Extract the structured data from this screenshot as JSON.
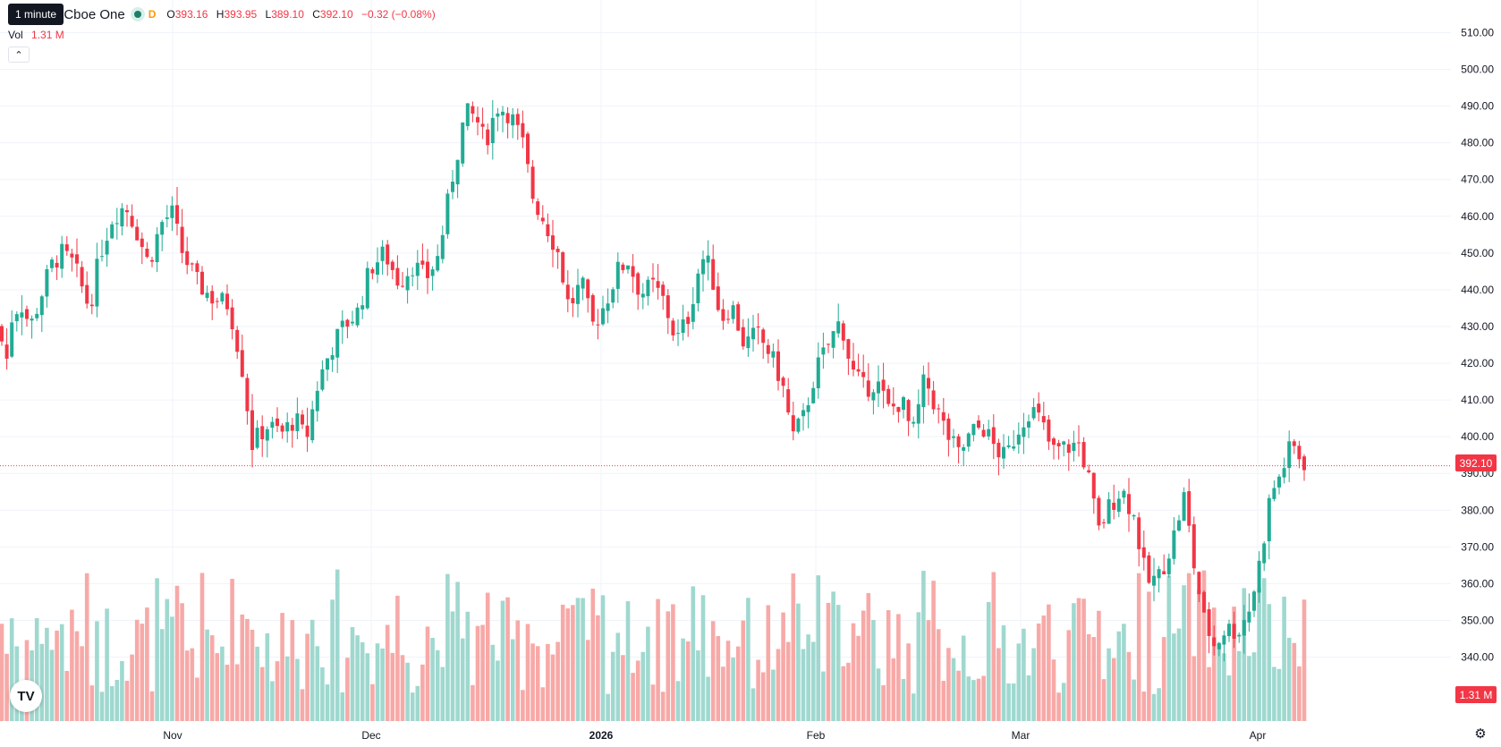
{
  "legend": {
    "symbol_text": "nc. · 4h · Cboe One",
    "interval_badge": "D",
    "open_label": "O",
    "open": "393.16",
    "high_label": "H",
    "high": "393.95",
    "low_label": "L",
    "low": "389.10",
    "close_label": "C",
    "close": "392.10",
    "change": "−0.32 (−0.08%)",
    "tooltip": "1 minute"
  },
  "volume": {
    "label": "Vol",
    "value": "1.31 M",
    "tag": "1.31 M"
  },
  "price_tag": "392.10",
  "logo_text": "TV",
  "colors": {
    "up": "#22ab94",
    "down": "#f23645",
    "up_vol": "#9fd8cf",
    "down_vol": "#f7a9a7",
    "grid": "#f0f3fa"
  },
  "icons": {
    "collapse": "chevron-up-icon",
    "settings": "gear-icon",
    "logo": "tradingview-logo-icon"
  },
  "chart_data": {
    "type": "candlestick",
    "y_axis": {
      "ticks": [
        340,
        350,
        360,
        370,
        380,
        390,
        400,
        410,
        420,
        430,
        440,
        450,
        460,
        470,
        480,
        490,
        500,
        510
      ],
      "tick_labels": [
        "340.00",
        "350.00",
        "360.00",
        "370.00",
        "380.00",
        "390.00",
        "400.00",
        "410.00",
        "420.00",
        "430.00",
        "440.00",
        "450.00",
        "460.00",
        "470.00",
        "480.00",
        "490.00",
        "500.00",
        "510.00"
      ],
      "ylim": [
        327,
        517
      ]
    },
    "x_axis": {
      "labels": [
        "Nov",
        "Dec",
        "2026",
        "Feb",
        "Mar",
        "Apr"
      ],
      "bold": [
        false,
        false,
        true,
        false,
        false,
        false
      ]
    },
    "last_price": 392.1,
    "volume_last": "1.31 M",
    "grid": true,
    "anchors": [
      [
        0,
        430
      ],
      [
        6,
        418
      ],
      [
        14,
        434
      ],
      [
        24,
        436
      ],
      [
        34,
        430
      ],
      [
        44,
        437
      ],
      [
        56,
        446
      ],
      [
        68,
        450
      ],
      [
        82,
        447
      ],
      [
        100,
        435
      ],
      [
        112,
        450
      ],
      [
        126,
        460
      ],
      [
        140,
        463
      ],
      [
        150,
        458
      ],
      [
        166,
        447
      ],
      [
        180,
        458
      ],
      [
        192,
        461
      ],
      [
        204,
        450
      ],
      [
        220,
        442
      ],
      [
        236,
        438
      ],
      [
        256,
        436
      ],
      [
        270,
        420
      ],
      [
        282,
        398
      ],
      [
        298,
        403
      ],
      [
        316,
        401
      ],
      [
        330,
        405
      ],
      [
        342,
        399
      ],
      [
        356,
        415
      ],
      [
        370,
        424
      ],
      [
        384,
        430
      ],
      [
        400,
        434
      ],
      [
        414,
        446
      ],
      [
        430,
        450
      ],
      [
        446,
        442
      ],
      [
        462,
        447
      ],
      [
        476,
        443
      ],
      [
        490,
        449
      ],
      [
        506,
        471
      ],
      [
        520,
        488
      ],
      [
        532,
        487
      ],
      [
        542,
        480
      ],
      [
        556,
        490
      ],
      [
        570,
        488
      ],
      [
        584,
        480
      ],
      [
        596,
        465
      ],
      [
        610,
        458
      ],
      [
        624,
        450
      ],
      [
        636,
        435
      ],
      [
        650,
        442
      ],
      [
        662,
        430
      ],
      [
        676,
        436
      ],
      [
        690,
        445
      ],
      [
        702,
        448
      ],
      [
        716,
        439
      ],
      [
        730,
        441
      ],
      [
        742,
        437
      ],
      [
        756,
        426
      ],
      [
        770,
        433
      ],
      [
        784,
        449
      ],
      [
        794,
        446
      ],
      [
        806,
        432
      ],
      [
        818,
        436
      ],
      [
        832,
        425
      ],
      [
        846,
        428
      ],
      [
        860,
        423
      ],
      [
        874,
        415
      ],
      [
        886,
        400
      ],
      [
        898,
        405
      ],
      [
        912,
        418
      ],
      [
        926,
        425
      ],
      [
        940,
        432
      ],
      [
        952,
        418
      ],
      [
        966,
        413
      ],
      [
        980,
        415
      ],
      [
        994,
        407
      ],
      [
        1008,
        410
      ],
      [
        1020,
        400
      ],
      [
        1034,
        416
      ],
      [
        1046,
        408
      ],
      [
        1060,
        400
      ],
      [
        1072,
        395
      ],
      [
        1086,
        401
      ],
      [
        1098,
        403
      ],
      [
        1112,
        397
      ],
      [
        1124,
        394
      ],
      [
        1138,
        402
      ],
      [
        1152,
        408
      ],
      [
        1164,
        404
      ],
      [
        1176,
        396
      ],
      [
        1190,
        397
      ],
      [
        1206,
        398
      ],
      [
        1216,
        390
      ],
      [
        1228,
        374
      ],
      [
        1240,
        381
      ],
      [
        1254,
        386
      ],
      [
        1268,
        378
      ],
      [
        1282,
        360
      ],
      [
        1296,
        362
      ],
      [
        1310,
        371
      ],
      [
        1324,
        384
      ],
      [
        1334,
        366
      ],
      [
        1346,
        350
      ],
      [
        1358,
        343
      ],
      [
        1370,
        348
      ],
      [
        1384,
        347
      ],
      [
        1398,
        354
      ],
      [
        1410,
        368
      ],
      [
        1420,
        384
      ],
      [
        1432,
        390
      ],
      [
        1444,
        398
      ],
      [
        1454,
        394
      ],
      [
        1462,
        392
      ]
    ]
  }
}
